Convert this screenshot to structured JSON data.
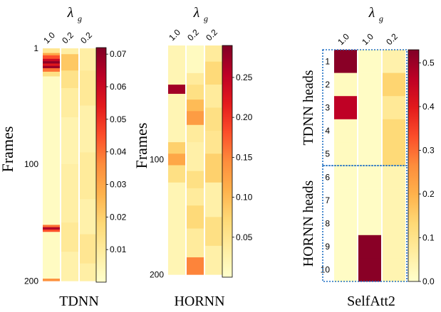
{
  "palette": [
    "#ffffcc",
    "#ffeda0",
    "#fed976",
    "#feb24c",
    "#fd8d3c",
    "#fc4e2a",
    "#e31a1c",
    "#bd0026",
    "#800026"
  ],
  "chart_data": [
    {
      "type": "heatmap",
      "title": "TDNN",
      "xlabel": "λ",
      "xlabel_sub": "g",
      "ylabel": "Frames",
      "columns": [
        "1.0",
        "0.2",
        "0.2"
      ],
      "yticks": [
        "1",
        "100",
        "200"
      ],
      "ylim": [
        1,
        200
      ],
      "colorbar": {
        "min": 0.0,
        "max": 0.072,
        "ticks": [
          "0.07",
          "0.06",
          "0.05",
          "0.04",
          "0.03",
          "0.02",
          "0.01"
        ],
        "tick_values": [
          0.07,
          0.06,
          0.05,
          0.04,
          0.03,
          0.02,
          0.01
        ]
      },
      "cells": [
        {
          "col": 0,
          "from": 1,
          "to": 5,
          "value": 0.012
        },
        {
          "col": 0,
          "from": 5,
          "to": 7,
          "value": 0.03
        },
        {
          "col": 0,
          "from": 7,
          "to": 10,
          "value": 0.045
        },
        {
          "col": 0,
          "from": 10,
          "to": 12,
          "value": 0.06
        },
        {
          "col": 0,
          "from": 12,
          "to": 14,
          "value": 0.07
        },
        {
          "col": 0,
          "from": 14,
          "to": 16,
          "value": 0.055
        },
        {
          "col": 0,
          "from": 16,
          "to": 18,
          "value": 0.068
        },
        {
          "col": 0,
          "from": 18,
          "to": 21,
          "value": 0.04
        },
        {
          "col": 0,
          "from": 21,
          "to": 25,
          "value": 0.015
        },
        {
          "col": 0,
          "from": 25,
          "to": 152,
          "value": 0.002
        },
        {
          "col": 0,
          "from": 152,
          "to": 154,
          "value": 0.04
        },
        {
          "col": 0,
          "from": 154,
          "to": 156,
          "value": 0.065
        },
        {
          "col": 0,
          "from": 156,
          "to": 158,
          "value": 0.045
        },
        {
          "col": 0,
          "from": 158,
          "to": 198,
          "value": 0.002
        },
        {
          "col": 0,
          "from": 198,
          "to": 200,
          "value": 0.035
        },
        {
          "col": 1,
          "from": 1,
          "to": 6,
          "value": 0.008
        },
        {
          "col": 1,
          "from": 6,
          "to": 20,
          "value": 0.022
        },
        {
          "col": 1,
          "from": 20,
          "to": 35,
          "value": 0.014
        },
        {
          "col": 1,
          "from": 35,
          "to": 60,
          "value": 0.009
        },
        {
          "col": 1,
          "from": 60,
          "to": 100,
          "value": 0.006
        },
        {
          "col": 1,
          "from": 100,
          "to": 150,
          "value": 0.008
        },
        {
          "col": 1,
          "from": 150,
          "to": 175,
          "value": 0.011
        },
        {
          "col": 1,
          "from": 175,
          "to": 200,
          "value": 0.007
        },
        {
          "col": 2,
          "from": 1,
          "to": 20,
          "value": 0.008
        },
        {
          "col": 2,
          "from": 20,
          "to": 50,
          "value": 0.011
        },
        {
          "col": 2,
          "from": 50,
          "to": 90,
          "value": 0.007
        },
        {
          "col": 2,
          "from": 90,
          "to": 130,
          "value": 0.01
        },
        {
          "col": 2,
          "from": 130,
          "to": 160,
          "value": 0.007
        },
        {
          "col": 2,
          "from": 160,
          "to": 185,
          "value": 0.012
        },
        {
          "col": 2,
          "from": 185,
          "to": 200,
          "value": 0.008
        }
      ]
    },
    {
      "type": "heatmap",
      "title": "HORNN",
      "xlabel": "λ",
      "xlabel_sub": "g",
      "ylabel": "Frames",
      "columns": [
        "1.0",
        "0.2",
        "0.2"
      ],
      "yticks": [
        "100",
        "200"
      ],
      "ylim": [
        1,
        200
      ],
      "colorbar": {
        "min": 0.0,
        "max": 0.29,
        "ticks": [
          "0.25",
          "0.20",
          "0.15",
          "0.10",
          "0.05"
        ],
        "tick_values": [
          0.25,
          0.2,
          0.15,
          0.1,
          0.05
        ]
      },
      "cells": [
        {
          "col": 0,
          "from": 1,
          "to": 35,
          "value": 0.02
        },
        {
          "col": 0,
          "from": 35,
          "to": 43,
          "value": 0.27
        },
        {
          "col": 0,
          "from": 43,
          "to": 85,
          "value": 0.02
        },
        {
          "col": 0,
          "from": 85,
          "to": 95,
          "value": 0.08
        },
        {
          "col": 0,
          "from": 95,
          "to": 105,
          "value": 0.12
        },
        {
          "col": 0,
          "from": 105,
          "to": 120,
          "value": 0.06
        },
        {
          "col": 0,
          "from": 120,
          "to": 200,
          "value": 0.02
        },
        {
          "col": 1,
          "from": 1,
          "to": 25,
          "value": 0.01
        },
        {
          "col": 1,
          "from": 25,
          "to": 35,
          "value": 0.04
        },
        {
          "col": 1,
          "from": 35,
          "to": 48,
          "value": 0.06
        },
        {
          "col": 1,
          "from": 48,
          "to": 58,
          "value": 0.1
        },
        {
          "col": 1,
          "from": 58,
          "to": 70,
          "value": 0.13
        },
        {
          "col": 1,
          "from": 70,
          "to": 85,
          "value": 0.04
        },
        {
          "col": 1,
          "from": 85,
          "to": 110,
          "value": 0.03
        },
        {
          "col": 1,
          "from": 110,
          "to": 125,
          "value": 0.06
        },
        {
          "col": 1,
          "from": 125,
          "to": 140,
          "value": 0.04
        },
        {
          "col": 1,
          "from": 140,
          "to": 160,
          "value": 0.07
        },
        {
          "col": 1,
          "from": 160,
          "to": 185,
          "value": 0.04
        },
        {
          "col": 1,
          "from": 185,
          "to": 200,
          "value": 0.15
        },
        {
          "col": 2,
          "from": 1,
          "to": 15,
          "value": 0.04
        },
        {
          "col": 2,
          "from": 15,
          "to": 35,
          "value": 0.07
        },
        {
          "col": 2,
          "from": 35,
          "to": 55,
          "value": 0.04
        },
        {
          "col": 2,
          "from": 55,
          "to": 75,
          "value": 0.06
        },
        {
          "col": 2,
          "from": 75,
          "to": 95,
          "value": 0.05
        },
        {
          "col": 2,
          "from": 95,
          "to": 120,
          "value": 0.08
        },
        {
          "col": 2,
          "from": 120,
          "to": 150,
          "value": 0.03
        },
        {
          "col": 2,
          "from": 150,
          "to": 175,
          "value": 0.06
        },
        {
          "col": 2,
          "from": 175,
          "to": 200,
          "value": 0.03
        }
      ]
    },
    {
      "type": "heatmap",
      "title": "SelfAtt2",
      "xlabel": "λ",
      "xlabel_sub": "g",
      "columns": [
        "1.0",
        "1.0",
        "0.2"
      ],
      "rows": [
        "1",
        "2",
        "3",
        "4",
        "5",
        "6",
        "7",
        "8",
        "9",
        "10"
      ],
      "group_labels": [
        "TDNN heads",
        "HORNN heads"
      ],
      "colorbar": {
        "min": 0.0,
        "max": 0.53,
        "ticks": [
          "0.5",
          "0.4",
          "0.3",
          "0.2",
          "0.1",
          "0.0"
        ],
        "tick_values": [
          0.5,
          0.4,
          0.3,
          0.2,
          0.1,
          0.0
        ]
      },
      "values": [
        [
          0.52,
          0.01,
          0.05
        ],
        [
          0.02,
          0.01,
          0.14
        ],
        [
          0.46,
          0.01,
          0.08
        ],
        [
          0.02,
          0.01,
          0.13
        ],
        [
          0.02,
          0.01,
          0.13
        ],
        [
          0.01,
          0.01,
          0.04
        ],
        [
          0.01,
          0.01,
          0.04
        ],
        [
          0.01,
          0.01,
          0.04
        ],
        [
          0.01,
          0.52,
          0.04
        ],
        [
          0.01,
          0.52,
          0.04
        ]
      ]
    }
  ]
}
